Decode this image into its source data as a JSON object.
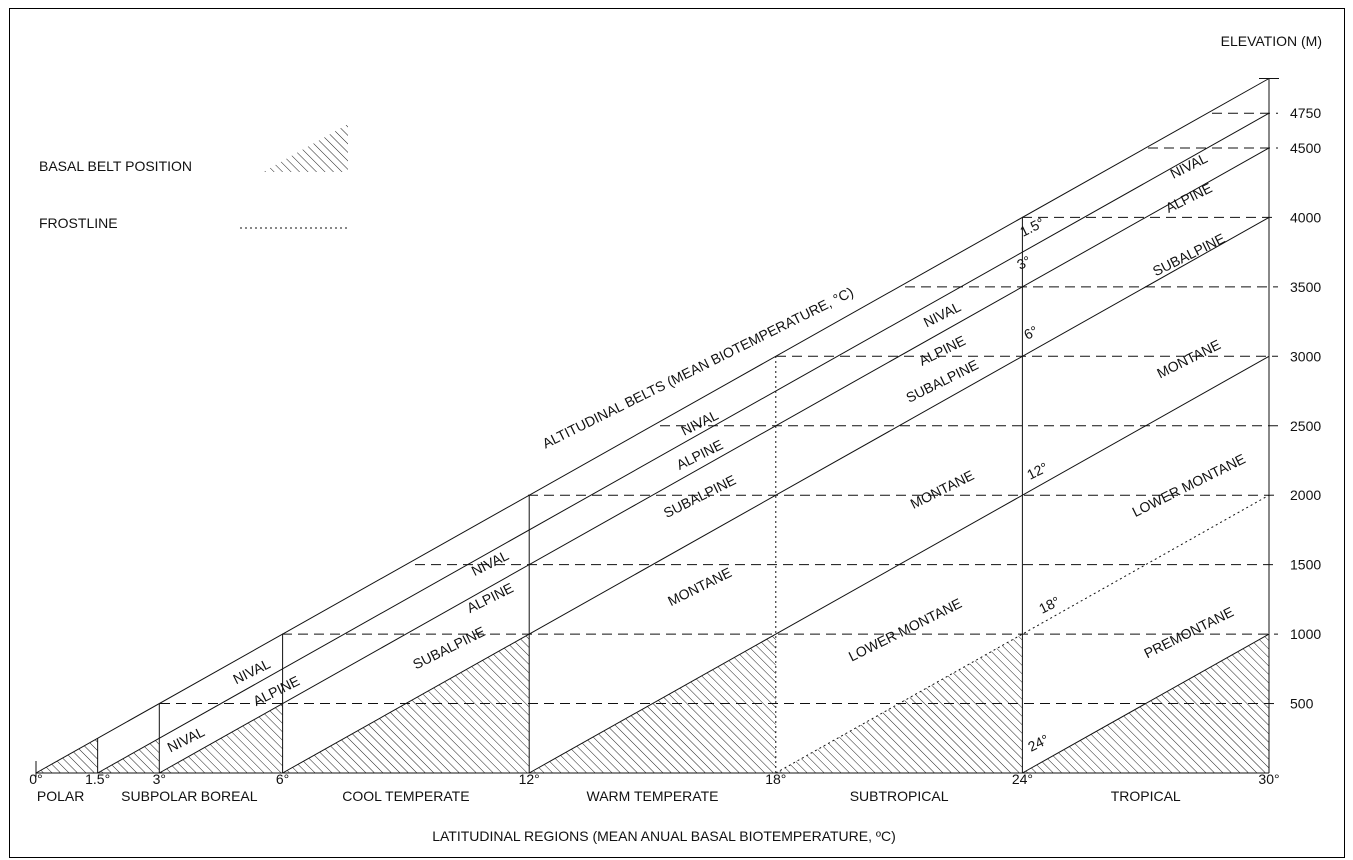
{
  "elevation_axis": {
    "title": "ELEVATION (M)",
    "ticks": [
      {
        "label": "500",
        "value": 500
      },
      {
        "label": "1000",
        "value": 1000
      },
      {
        "label": "1500",
        "value": 1500
      },
      {
        "label": "2000",
        "value": 2000
      },
      {
        "label": "2500",
        "value": 2500
      },
      {
        "label": "3000",
        "value": 3000
      },
      {
        "label": "3500",
        "value": 3500
      },
      {
        "label": "4000",
        "value": 4000
      },
      {
        "label": "4500",
        "value": 4500
      },
      {
        "label": "4750",
        "value": 4750
      }
    ]
  },
  "temperature_axis": {
    "title": "LATITUDINAL REGIONS (MEAN ANUAL BASAL BIOTEMPERATURE, ºC)",
    "ticks": [
      {
        "label": "0°",
        "value": 0
      },
      {
        "label": "1.5°",
        "value": 1.5
      },
      {
        "label": "3°",
        "value": 3
      },
      {
        "label": "6°",
        "value": 6
      },
      {
        "label": "12°",
        "value": 12
      },
      {
        "label": "18°",
        "value": 18
      },
      {
        "label": "24°",
        "value": 24
      },
      {
        "label": "30°",
        "value": 30
      }
    ]
  },
  "regions": [
    {
      "name": "POLAR",
      "center": 0.6
    },
    {
      "name": "SUBPOLAR",
      "center": 3.0
    },
    {
      "name": "BOREAL",
      "center": 4.7
    },
    {
      "name": "COOL TEMPERATE",
      "center": 9.0
    },
    {
      "name": "WARM TEMPERATE",
      "center": 15.0
    },
    {
      "name": "SUBTROPICAL",
      "center": 21.0
    },
    {
      "name": "TROPICAL",
      "center": 27.0
    }
  ],
  "altitudinal_title": "ALTITUDINAL BELTS (MEAN BIOTEMPERATURE, °C)",
  "legend": {
    "basal_label": "BASAL BELT POSITION",
    "frost_label": "FROSTLINE"
  },
  "isotherm_labels": [
    {
      "text": "1.5°"
    },
    {
      "text": "3°"
    },
    {
      "text": "6°"
    },
    {
      "text": "12°"
    },
    {
      "text": "18°"
    },
    {
      "text": "24°"
    }
  ],
  "belt_labels": [
    {
      "text": "NIVAL",
      "temp": 3.7,
      "elev": 210
    },
    {
      "text": "NIVAL",
      "temp": 5.3,
      "elev": 700
    },
    {
      "text": "ALPINE",
      "temp": 5.9,
      "elev": 560
    },
    {
      "text": "NIVAL",
      "temp": 11.1,
      "elev": 1480
    },
    {
      "text": "ALPINE",
      "temp": 11.1,
      "elev": 1230
    },
    {
      "text": "SUBALPINE",
      "temp": 10.1,
      "elev": 870
    },
    {
      "text": "NIVAL",
      "temp": 16.2,
      "elev": 2490
    },
    {
      "text": "ALPINE",
      "temp": 16.2,
      "elev": 2260
    },
    {
      "text": "SUBALPINE",
      "temp": 16.2,
      "elev": 1960
    },
    {
      "text": "MONTANE",
      "temp": 16.2,
      "elev": 1310
    },
    {
      "text": "NIVAL",
      "temp": 22.1,
      "elev": 3270
    },
    {
      "text": "ALPINE",
      "temp": 22.1,
      "elev": 3010
    },
    {
      "text": "SUBALPINE",
      "temp": 22.1,
      "elev": 2790
    },
    {
      "text": "MONTANE",
      "temp": 22.1,
      "elev": 2010
    },
    {
      "text": "LOWER MONTANE",
      "temp": 21.2,
      "elev": 1000
    },
    {
      "text": "NIVAL",
      "temp": 28.1,
      "elev": 4340
    },
    {
      "text": "ALPINE",
      "temp": 28.1,
      "elev": 4110
    },
    {
      "text": "SUBALPINE",
      "temp": 28.1,
      "elev": 3700
    },
    {
      "text": "MONTANE",
      "temp": 28.1,
      "elev": 2950
    },
    {
      "text": "LOWER MONTANE",
      "temp": 28.1,
      "elev": 2040
    },
    {
      "text": "PREMONTANE",
      "temp": 28.1,
      "elev": 980
    }
  ]
}
